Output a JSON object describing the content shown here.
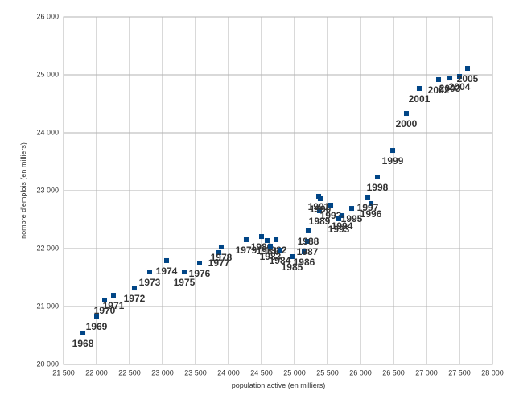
{
  "chart_data": {
    "type": "scatter",
    "x_label": "population active (en milliers)",
    "y_label": "nombre d'emplois (en milliers)",
    "color": "#004586",
    "grid": true,
    "xlim": [
      21500,
      28000
    ],
    "ylim": [
      20000,
      26000
    ],
    "xticks": [
      {
        "value": 21500,
        "label": "21 500"
      },
      {
        "value": 22000,
        "label": "22 000"
      },
      {
        "value": 22500,
        "label": "22 500"
      },
      {
        "value": 23000,
        "label": "23 000"
      },
      {
        "value": 23500,
        "label": "23 500"
      },
      {
        "value": 24000,
        "label": "24 000"
      },
      {
        "value": 24500,
        "label": "24 500"
      },
      {
        "value": 25000,
        "label": "25 000"
      },
      {
        "value": 25500,
        "label": "25 500"
      },
      {
        "value": 26000,
        "label": "26 000"
      },
      {
        "value": 26500,
        "label": "26 500"
      },
      {
        "value": 27000,
        "label": "27 000"
      },
      {
        "value": 27500,
        "label": "27 500"
      },
      {
        "value": 28000,
        "label": "28 000"
      }
    ],
    "yticks": [
      {
        "value": 20000,
        "label": "20 000"
      },
      {
        "value": 21000,
        "label": "21 000"
      },
      {
        "value": 22000,
        "label": "22 000"
      },
      {
        "value": 23000,
        "label": "23 000"
      },
      {
        "value": 24000,
        "label": "24 000"
      },
      {
        "value": 25000,
        "label": "25 000"
      },
      {
        "value": 26000,
        "label": "26 000"
      }
    ],
    "labels": [
      "1968",
      "1969",
      "1970",
      "1971",
      "1972",
      "1973",
      "1974",
      "1975",
      "1976",
      "1977",
      "1978",
      "1979",
      "1980",
      "1981",
      "1982",
      "1983",
      "1984",
      "1985",
      "1986",
      "1987",
      "1988",
      "1989",
      "1990",
      "1991",
      "1992",
      "1993",
      "1994",
      "1995",
      "1996",
      "1997",
      "1998",
      "1999",
      "2000",
      "2001",
      "2002",
      "2003",
      "2004",
      "2005"
    ],
    "x": [
      21793,
      22000,
      22122,
      22256,
      22573,
      22805,
      23061,
      23329,
      23561,
      23854,
      23890,
      24268,
      24500,
      24585,
      24720,
      24634,
      24780,
      24963,
      25146,
      25195,
      25207,
      25378,
      25390,
      25366,
      25549,
      25671,
      25720,
      25866,
      26159,
      26110,
      26256,
      26488,
      26695,
      26890,
      27183,
      27354,
      27500,
      27622
    ],
    "values": [
      20542,
      20833,
      21111,
      21194,
      21319,
      21597,
      21792,
      21597,
      21750,
      21931,
      22028,
      22153,
      22208,
      22139,
      22153,
      22042,
      21972,
      21861,
      21944,
      22125,
      22306,
      22653,
      22861,
      22903,
      22750,
      22514,
      22569,
      22694,
      22778,
      22889,
      23236,
      23694,
      24333,
      24764,
      24917,
      24944,
      24972,
      25111
    ]
  }
}
